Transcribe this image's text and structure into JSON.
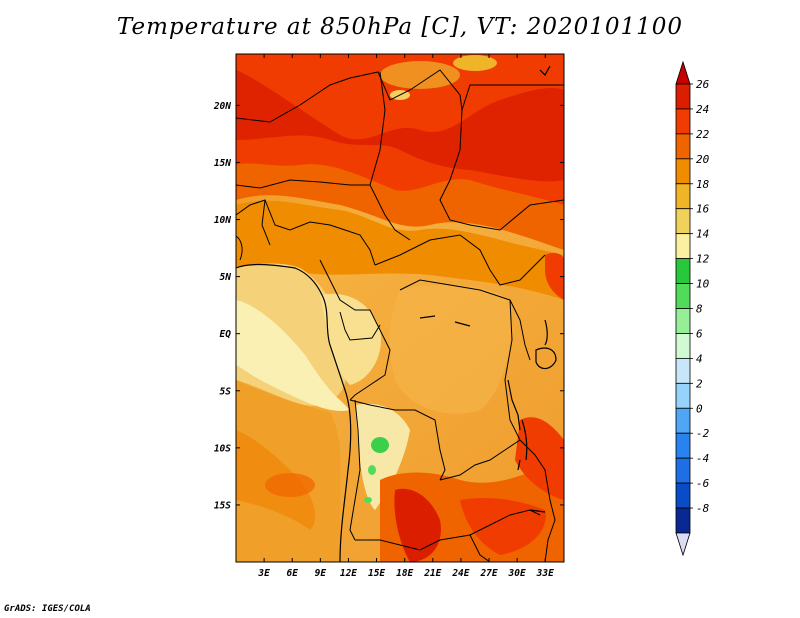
{
  "title": "Temperature at 850hPa [C], VT: 2020101100",
  "credit": "GrADS: IGES/COLA",
  "map": {
    "lon_range": [
      0,
      35
    ],
    "lat_range": [
      -20,
      24.5
    ],
    "lon_ticks": [
      "3E",
      "6E",
      "9E",
      "12E",
      "15E",
      "18E",
      "21E",
      "24E",
      "27E",
      "30E",
      "33E"
    ],
    "lat_ticks": [
      "20N",
      "15N",
      "10N",
      "5N",
      "EQ",
      "5S",
      "10S",
      "15S"
    ]
  },
  "colorbar": {
    "labels": [
      "26",
      "24",
      "22",
      "20",
      "18",
      "16",
      "14",
      "12",
      "10",
      "8",
      "6",
      "4",
      "2",
      "0",
      "-2",
      "-4",
      "-6",
      "-8"
    ],
    "colors": [
      "#c80000",
      "#dc1e00",
      "#f03c00",
      "#f06400",
      "#f08c00",
      "#f0b428",
      "#f0d25a",
      "#faf0a0",
      "#28c83c",
      "#50dc5a",
      "#96ee96",
      "#d2fad2",
      "#c8e6fa",
      "#96d2fa",
      "#50a5f5",
      "#2882f0",
      "#1e6ee6",
      "#0a4bc8",
      "#0a2891",
      "#dcdcf5"
    ]
  },
  "colors": {
    "ocean_pale": "#f5e7a6",
    "land_warm": "#f0a030",
    "hot_north": "#e02a0a"
  }
}
